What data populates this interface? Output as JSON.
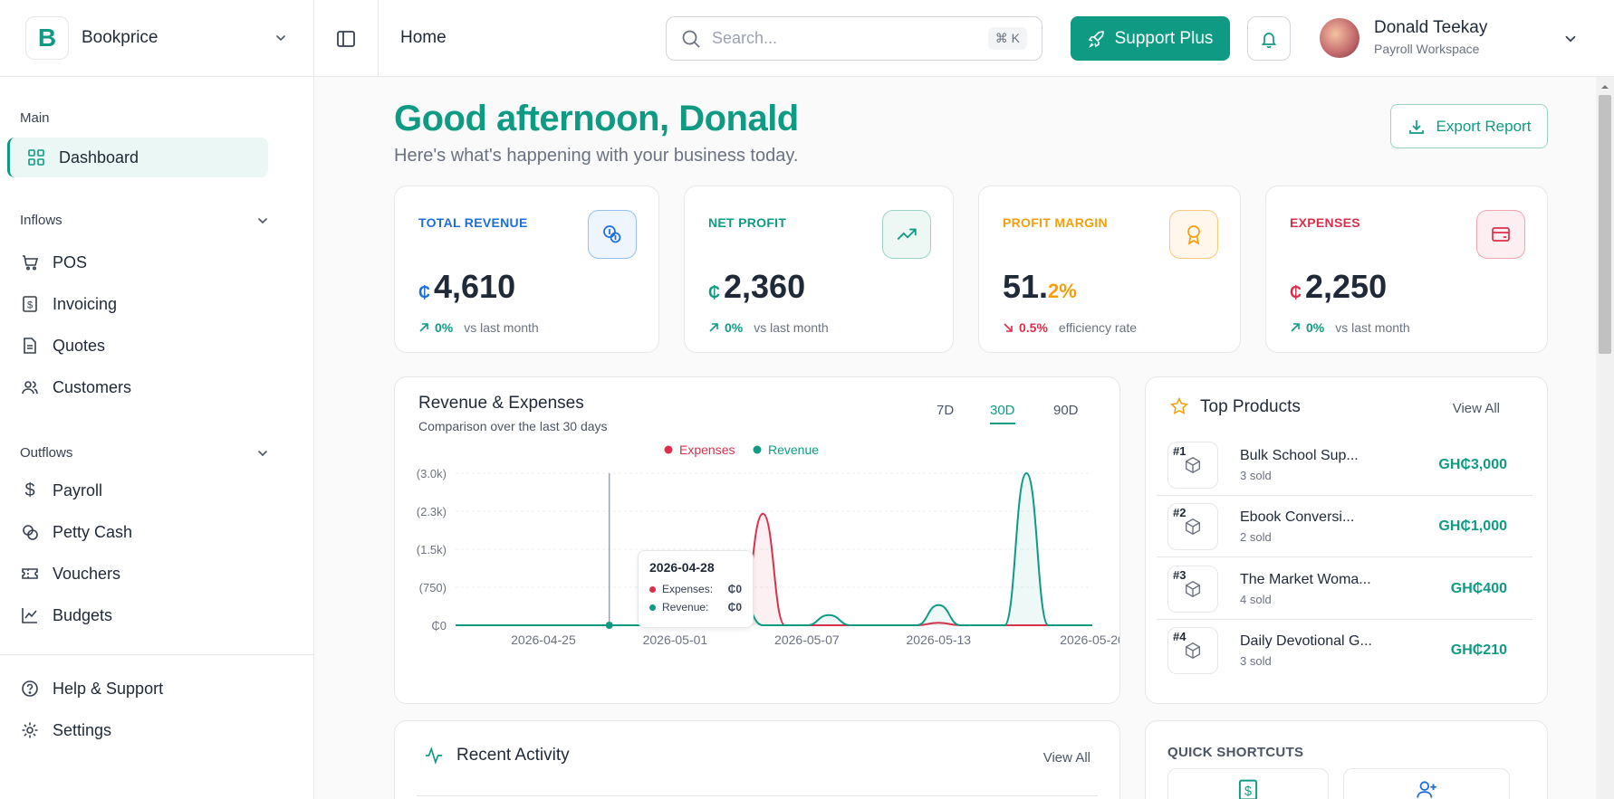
{
  "brand": {
    "name": "Bookprice",
    "logo_letter": "B"
  },
  "header": {
    "breadcrumb": "Home",
    "search_placeholder": "Search...",
    "search_shortcut": "⌘ K",
    "support_label": "Support Plus",
    "user_name": "Donald Teekay",
    "user_workspace": "Payroll Workspace"
  },
  "sidebar": {
    "main_title": "Main",
    "dashboard": "Dashboard",
    "inflows_title": "Inflows",
    "inflows": [
      "POS",
      "Invoicing",
      "Quotes",
      "Customers"
    ],
    "outflows_title": "Outflows",
    "outflows": [
      "Payroll",
      "Petty Cash",
      "Vouchers",
      "Budgets"
    ],
    "help": "Help & Support",
    "settings": "Settings"
  },
  "main": {
    "greeting": "Good afternoon, Donald",
    "subtitle": "Here's what's happening with your business today.",
    "export_label": "Export Report"
  },
  "stats": [
    {
      "label": "TOTAL REVENUE",
      "currency": "₵",
      "value": "4,610",
      "delta": "0%",
      "note": "vs last month",
      "color": "#1d6fd8"
    },
    {
      "label": "NET PROFIT",
      "currency": "₵",
      "value": "2,360",
      "delta": "0%",
      "note": "vs last month",
      "color": "#0f9b83"
    },
    {
      "label": "PROFIT MARGIN",
      "value_main": "51.",
      "value_decimal": "2%",
      "delta": "0.5%",
      "note": "efficiency rate",
      "color": "#f59e0b"
    },
    {
      "label": "EXPENSES",
      "currency": "₵",
      "value": "2,250",
      "delta": "0%",
      "note": "vs last month",
      "color": "#dc2f4b"
    }
  ],
  "chart_section": {
    "title": "Revenue & Expenses",
    "subtitle": "Comparison over the last 30 days",
    "ranges": [
      "7D",
      "30D",
      "90D"
    ],
    "active_range": "30D",
    "tooltip": {
      "date": "2026-04-28",
      "expenses_label": "Expenses:",
      "expenses_value": "₵0",
      "revenue_label": "Revenue:",
      "revenue_value": "₵0"
    }
  },
  "chart_data": {
    "type": "area",
    "x_ticks": [
      "2026-04-25",
      "2026-05-01",
      "2026-05-07",
      "2026-05-13",
      "2026-05-20"
    ],
    "y_ticks": [
      "₵0",
      "(750)",
      "(1.5k)",
      "(2.3k)",
      "(3.0k)"
    ],
    "ylim": [
      0,
      3000
    ],
    "x_dates": [
      "2026-04-21",
      "2026-04-22",
      "2026-04-23",
      "2026-04-24",
      "2026-04-25",
      "2026-04-26",
      "2026-04-27",
      "2026-04-28",
      "2026-04-29",
      "2026-04-30",
      "2026-05-01",
      "2026-05-02",
      "2026-05-03",
      "2026-05-04",
      "2026-05-05",
      "2026-05-06",
      "2026-05-07",
      "2026-05-08",
      "2026-05-09",
      "2026-05-10",
      "2026-05-11",
      "2026-05-12",
      "2026-05-13",
      "2026-05-14",
      "2026-05-15",
      "2026-05-16",
      "2026-05-17",
      "2026-05-18",
      "2026-05-19",
      "2026-05-20"
    ],
    "series": [
      {
        "name": "Expenses",
        "color": "#dc2f4b",
        "values": [
          0,
          0,
          0,
          0,
          0,
          0,
          0,
          0,
          0,
          0,
          0,
          100,
          0,
          150,
          2200,
          0,
          0,
          0,
          0,
          0,
          0,
          0,
          50,
          0,
          0,
          0,
          0,
          0,
          0,
          0
        ]
      },
      {
        "name": "Revenue",
        "color": "#0f9b83",
        "values": [
          0,
          0,
          0,
          0,
          0,
          0,
          0,
          0,
          0,
          0,
          0,
          450,
          0,
          500,
          0,
          0,
          0,
          200,
          0,
          0,
          0,
          0,
          400,
          0,
          0,
          0,
          3000,
          0,
          0,
          0
        ]
      }
    ],
    "legend": "top-center",
    "grid": true
  },
  "top_products": {
    "title": "Top Products",
    "view_all": "View All",
    "items": [
      {
        "rank": "#1",
        "name": "Bulk School Sup...",
        "sold": "3 sold",
        "price": "GH₵3,000"
      },
      {
        "rank": "#2",
        "name": "Ebook Conversi...",
        "sold": "2 sold",
        "price": "GH₵1,000"
      },
      {
        "rank": "#3",
        "name": "The Market Woma...",
        "sold": "4 sold",
        "price": "GH₵400"
      },
      {
        "rank": "#4",
        "name": "Daily Devotional G...",
        "sold": "3 sold",
        "price": "GH₵210"
      }
    ]
  },
  "recent_activity": {
    "title": "Recent Activity",
    "view_all": "View All"
  },
  "quick_shortcuts": {
    "title": "QUICK SHORTCUTS"
  },
  "colors": {
    "accent": "#0f9b83",
    "revenue": "#0f9b83",
    "expenses": "#dc2f4b",
    "margin": "#f59e0b",
    "total": "#1d6fd8"
  }
}
